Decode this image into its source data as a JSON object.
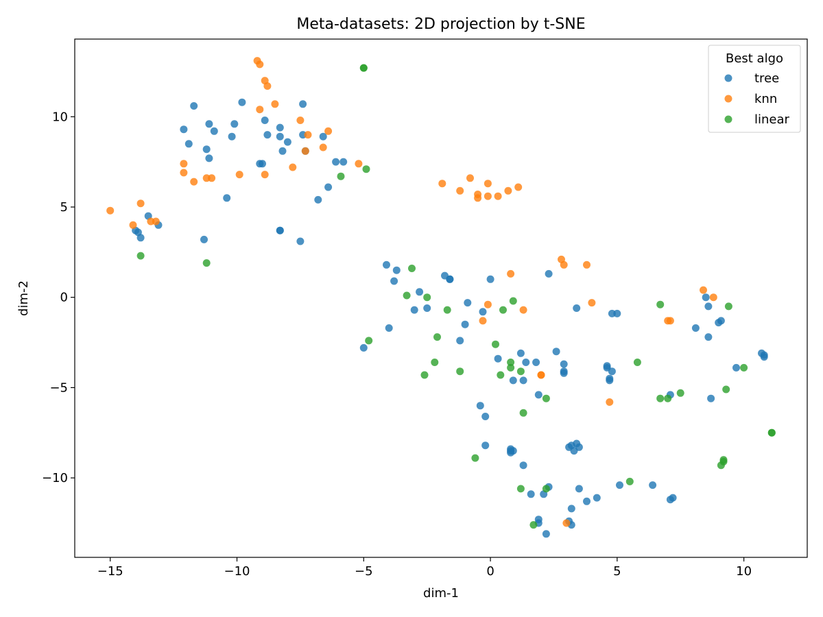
{
  "chart_data": {
    "type": "scatter",
    "title": "Meta-datasets: 2D projection by t-SNE",
    "xlabel": "dim-1",
    "ylabel": "dim-2",
    "xlim": [
      -16.4,
      12.5
    ],
    "ylim": [
      -14.4,
      14.3
    ],
    "xticks": [
      -15,
      -10,
      -5,
      0,
      5,
      10
    ],
    "xtick_labels": [
      "−15",
      "−10",
      "−5",
      "0",
      "5",
      "10"
    ],
    "yticks": [
      -10,
      -5,
      0,
      5,
      10
    ],
    "ytick_labels": [
      "−10",
      "−5",
      "0",
      "5",
      "10"
    ],
    "grid": false,
    "legend": {
      "title": "Best algo",
      "position": "top-right"
    },
    "series": [
      {
        "name": "tree",
        "color": "#1f77b4",
        "points": [
          [
            -14.0,
            3.7
          ],
          [
            -13.9,
            3.6
          ],
          [
            -13.8,
            3.3
          ],
          [
            -13.5,
            4.5
          ],
          [
            -13.1,
            4.0
          ],
          [
            -12.1,
            9.3
          ],
          [
            -11.9,
            8.5
          ],
          [
            -11.7,
            10.6
          ],
          [
            -11.3,
            3.2
          ],
          [
            -11.2,
            8.2
          ],
          [
            -11.1,
            9.6
          ],
          [
            -11.1,
            7.7
          ],
          [
            -10.9,
            9.2
          ],
          [
            -10.4,
            5.5
          ],
          [
            -10.2,
            8.9
          ],
          [
            -10.1,
            9.6
          ],
          [
            -9.8,
            10.8
          ],
          [
            -9.1,
            7.4
          ],
          [
            -9.0,
            7.4
          ],
          [
            -8.9,
            9.8
          ],
          [
            -8.8,
            9.0
          ],
          [
            -8.3,
            9.4
          ],
          [
            -8.3,
            8.9
          ],
          [
            -8.3,
            3.7
          ],
          [
            -8.3,
            3.7
          ],
          [
            -8.2,
            8.1
          ],
          [
            -8.0,
            8.6
          ],
          [
            -7.5,
            3.1
          ],
          [
            -7.4,
            10.7
          ],
          [
            -7.4,
            9.0
          ],
          [
            -7.3,
            8.1
          ],
          [
            -6.8,
            5.4
          ],
          [
            -6.6,
            8.9
          ],
          [
            -6.4,
            6.1
          ],
          [
            -6.1,
            7.5
          ],
          [
            -5.8,
            7.5
          ],
          [
            -4.1,
            1.8
          ],
          [
            -3.8,
            0.9
          ],
          [
            -3.7,
            1.5
          ],
          [
            -4.0,
            -1.7
          ],
          [
            -5.0,
            -2.8
          ],
          [
            -3.0,
            -0.7
          ],
          [
            -2.8,
            0.3
          ],
          [
            -2.5,
            -0.6
          ],
          [
            -1.8,
            1.2
          ],
          [
            -1.6,
            1.0
          ],
          [
            -1.6,
            1.0
          ],
          [
            -1.2,
            -2.4
          ],
          [
            -1.0,
            -1.5
          ],
          [
            -0.9,
            -0.3
          ],
          [
            -0.4,
            -6.0
          ],
          [
            -0.3,
            -0.8
          ],
          [
            -0.2,
            -6.6
          ],
          [
            -0.2,
            -8.2
          ],
          [
            0.0,
            1.0
          ],
          [
            0.3,
            -3.4
          ],
          [
            0.8,
            -8.4
          ],
          [
            0.8,
            -8.6
          ],
          [
            0.8,
            -8.5
          ],
          [
            0.9,
            -8.5
          ],
          [
            0.9,
            -4.6
          ],
          [
            1.2,
            -3.1
          ],
          [
            1.3,
            -4.6
          ],
          [
            1.3,
            -9.3
          ],
          [
            1.4,
            -3.6
          ],
          [
            1.6,
            -10.9
          ],
          [
            1.8,
            -3.6
          ],
          [
            1.9,
            -5.4
          ],
          [
            1.9,
            -12.3
          ],
          [
            1.9,
            -12.5
          ],
          [
            2.1,
            -10.9
          ],
          [
            2.2,
            -13.1
          ],
          [
            2.3,
            -10.5
          ],
          [
            2.3,
            1.3
          ],
          [
            2.6,
            -3.0
          ],
          [
            2.9,
            -3.7
          ],
          [
            2.9,
            -4.1
          ],
          [
            2.9,
            -4.2
          ],
          [
            3.1,
            -12.4
          ],
          [
            3.1,
            -8.3
          ],
          [
            3.2,
            -8.2
          ],
          [
            3.2,
            -12.6
          ],
          [
            3.2,
            -11.7
          ],
          [
            3.3,
            -8.5
          ],
          [
            3.4,
            -8.1
          ],
          [
            3.4,
            -0.6
          ],
          [
            3.5,
            -10.6
          ],
          [
            3.5,
            -8.3
          ],
          [
            3.8,
            -11.3
          ],
          [
            4.2,
            -11.1
          ],
          [
            4.6,
            -3.8
          ],
          [
            4.6,
            -3.9
          ],
          [
            4.7,
            -4.6
          ],
          [
            4.7,
            -4.5
          ],
          [
            4.8,
            -0.9
          ],
          [
            4.8,
            -4.1
          ],
          [
            5.0,
            -0.9
          ],
          [
            5.1,
            -10.4
          ],
          [
            6.4,
            -10.4
          ],
          [
            7.1,
            -11.2
          ],
          [
            7.1,
            -5.4
          ],
          [
            7.2,
            -11.1
          ],
          [
            8.1,
            -1.7
          ],
          [
            8.5,
            0.0
          ],
          [
            8.6,
            -0.5
          ],
          [
            8.6,
            -2.2
          ],
          [
            8.7,
            -5.6
          ],
          [
            9.0,
            -1.4
          ],
          [
            9.1,
            -1.3
          ],
          [
            9.7,
            -3.9
          ],
          [
            10.7,
            -3.1
          ],
          [
            10.8,
            -3.2
          ],
          [
            10.8,
            -3.3
          ]
        ]
      },
      {
        "name": "knn",
        "color": "#ff7f0e",
        "points": [
          [
            -15.0,
            4.8
          ],
          [
            -14.1,
            4.0
          ],
          [
            -13.8,
            5.2
          ],
          [
            -13.4,
            4.2
          ],
          [
            -13.2,
            4.2
          ],
          [
            -12.1,
            7.4
          ],
          [
            -12.1,
            6.9
          ],
          [
            -11.7,
            6.4
          ],
          [
            -11.2,
            6.6
          ],
          [
            -11.0,
            6.6
          ],
          [
            -9.9,
            6.8
          ],
          [
            -9.2,
            13.1
          ],
          [
            -9.1,
            12.9
          ],
          [
            -9.1,
            10.4
          ],
          [
            -8.9,
            6.8
          ],
          [
            -8.9,
            12.0
          ],
          [
            -8.8,
            11.7
          ],
          [
            -8.5,
            10.7
          ],
          [
            -7.8,
            7.2
          ],
          [
            -7.5,
            9.8
          ],
          [
            -7.3,
            8.1
          ],
          [
            -7.2,
            9.0
          ],
          [
            -6.6,
            8.3
          ],
          [
            -6.4,
            9.2
          ],
          [
            -5.2,
            7.4
          ],
          [
            -1.9,
            6.3
          ],
          [
            -1.2,
            5.9
          ],
          [
            -0.8,
            6.6
          ],
          [
            -0.5,
            5.7
          ],
          [
            -0.5,
            5.5
          ],
          [
            -0.1,
            5.6
          ],
          [
            -0.1,
            6.3
          ],
          [
            0.3,
            5.6
          ],
          [
            0.7,
            5.9
          ],
          [
            1.1,
            6.1
          ],
          [
            -0.3,
            -1.3
          ],
          [
            -0.1,
            -0.4
          ],
          [
            0.8,
            1.3
          ],
          [
            1.3,
            -0.7
          ],
          [
            2.0,
            -4.3
          ],
          [
            2.0,
            -4.3
          ],
          [
            2.8,
            2.1
          ],
          [
            2.9,
            1.8
          ],
          [
            3.0,
            -12.5
          ],
          [
            3.8,
            1.8
          ],
          [
            4.0,
            -0.3
          ],
          [
            4.7,
            -5.8
          ],
          [
            7.0,
            -1.3
          ],
          [
            7.1,
            -1.3
          ],
          [
            8.4,
            0.4
          ],
          [
            8.8,
            0.0
          ]
        ]
      },
      {
        "name": "linear",
        "color": "#2ca02c",
        "points": [
          [
            -13.8,
            2.3
          ],
          [
            -11.2,
            1.9
          ],
          [
            -5.9,
            6.7
          ],
          [
            -5.0,
            12.7
          ],
          [
            -5.0,
            12.7
          ],
          [
            -4.9,
            7.1
          ],
          [
            -4.8,
            -2.4
          ],
          [
            -3.3,
            0.1
          ],
          [
            -3.1,
            1.6
          ],
          [
            -2.6,
            -4.3
          ],
          [
            -2.5,
            0.0
          ],
          [
            -2.2,
            -3.6
          ],
          [
            -2.1,
            -2.2
          ],
          [
            -1.7,
            -0.7
          ],
          [
            -1.2,
            -4.1
          ],
          [
            -0.6,
            -8.9
          ],
          [
            0.2,
            -2.6
          ],
          [
            0.4,
            -4.3
          ],
          [
            0.5,
            -0.7
          ],
          [
            0.8,
            -3.9
          ],
          [
            0.8,
            -3.6
          ],
          [
            0.9,
            -0.2
          ],
          [
            1.2,
            -4.1
          ],
          [
            1.2,
            -10.6
          ],
          [
            1.3,
            -6.4
          ],
          [
            1.7,
            -12.6
          ],
          [
            2.2,
            -5.6
          ],
          [
            2.2,
            -10.6
          ],
          [
            5.5,
            -10.2
          ],
          [
            5.8,
            -3.6
          ],
          [
            6.7,
            -0.4
          ],
          [
            6.7,
            -5.6
          ],
          [
            7.0,
            -5.6
          ],
          [
            7.5,
            -5.3
          ],
          [
            9.1,
            -9.3
          ],
          [
            9.2,
            -9.1
          ],
          [
            9.2,
            -9.0
          ],
          [
            9.3,
            -5.1
          ],
          [
            9.4,
            -0.5
          ],
          [
            10.0,
            -3.9
          ],
          [
            11.1,
            -7.5
          ],
          [
            11.1,
            -7.5
          ]
        ]
      }
    ]
  }
}
